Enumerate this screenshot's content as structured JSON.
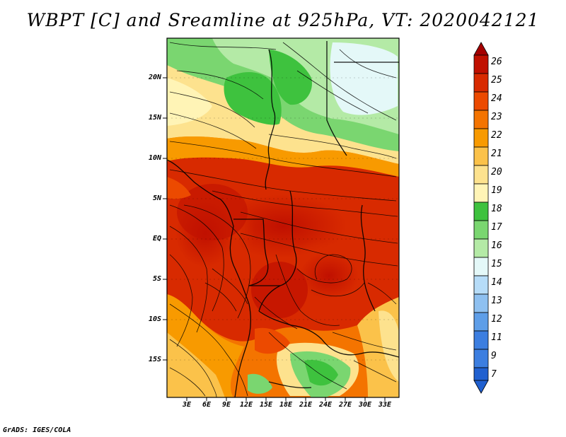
{
  "title": "WBPT [C] and Sreamline at 925hPa, VT: 2020042121",
  "footer": "GrADS: IGES/COLA",
  "map": {
    "lat_labels": [
      "20N",
      "15N",
      "10N",
      "5N",
      "EQ",
      "5S",
      "10S",
      "15S"
    ],
    "lat_values": [
      20,
      15,
      10,
      5,
      0,
      -5,
      -10,
      -15
    ],
    "lon_labels": [
      "3E",
      "6E",
      "9E",
      "12E",
      "15E",
      "18E",
      "21E",
      "24E",
      "27E",
      "30E",
      "33E"
    ],
    "lon_values": [
      3,
      6,
      9,
      12,
      15,
      18,
      21,
      24,
      27,
      30,
      33
    ],
    "lon_range": [
      0,
      35
    ],
    "lat_range": [
      -20,
      24.5
    ]
  },
  "colorbar": {
    "levels": [
      "26",
      "25",
      "24",
      "23",
      "22",
      "21",
      "20",
      "19",
      "18",
      "17",
      "16",
      "15",
      "14",
      "13",
      "12",
      "11",
      "9",
      "7"
    ],
    "colors": [
      "#a50000",
      "#c01000",
      "#d82a00",
      "#ec4a00",
      "#f47400",
      "#f89a00",
      "#fbc24a",
      "#fde28e",
      "#fff4b6",
      "#3ec23e",
      "#7ad670",
      "#b4eaa6",
      "#e4f8f8",
      "#b6dcf8",
      "#8ec0f0",
      "#5e9ee8",
      "#3c7ee0",
      "#2060d0"
    ]
  }
}
